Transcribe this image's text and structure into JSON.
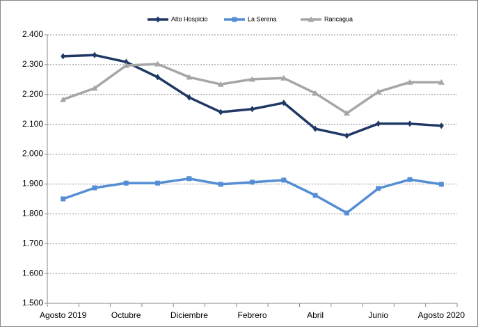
{
  "chart_data": {
    "type": "line",
    "categories": [
      "Agosto 2019",
      null,
      "Octubre",
      null,
      "Diciembre",
      null,
      "Febrero",
      null,
      "Abril",
      null,
      "Junio",
      null,
      "Agosto 2020"
    ],
    "series": [
      {
        "name": "Alto Hospicio",
        "color": "#1f3864",
        "marker": "diamond",
        "values": [
          2328,
          2332,
          2309,
          2258,
          2190,
          2141,
          2151,
          2172,
          2085,
          2062,
          2102,
          2102,
          2095
        ]
      },
      {
        "name": "La Serena",
        "color": "#558ed5",
        "marker": "square",
        "values": [
          1850,
          1887,
          1903,
          1903,
          1918,
          1899,
          1906,
          1913,
          1862,
          1803,
          1885,
          1915,
          1899
        ]
      },
      {
        "name": "Rancagua",
        "color": "#a6a6a6",
        "marker": "triangle",
        "values": [
          2183,
          2221,
          2297,
          2302,
          2258,
          2234,
          2251,
          2255,
          2204,
          2137,
          2209,
          2241,
          2241
        ]
      }
    ],
    "ylim": [
      1500,
      2400
    ],
    "yticks": [
      {
        "value": 1500,
        "label": "1.500"
      },
      {
        "value": 1600,
        "label": "1.600"
      },
      {
        "value": 1700,
        "label": "1.700"
      },
      {
        "value": 1800,
        "label": "1.800"
      },
      {
        "value": 1900,
        "label": "1.900"
      },
      {
        "value": 2000,
        "label": "2.000"
      },
      {
        "value": 2100,
        "label": "2.100"
      },
      {
        "value": 2200,
        "label": "2.200"
      },
      {
        "value": 2300,
        "label": "2.300"
      },
      {
        "value": 2400,
        "label": "2.400"
      }
    ],
    "grid": true,
    "legend": "top"
  }
}
